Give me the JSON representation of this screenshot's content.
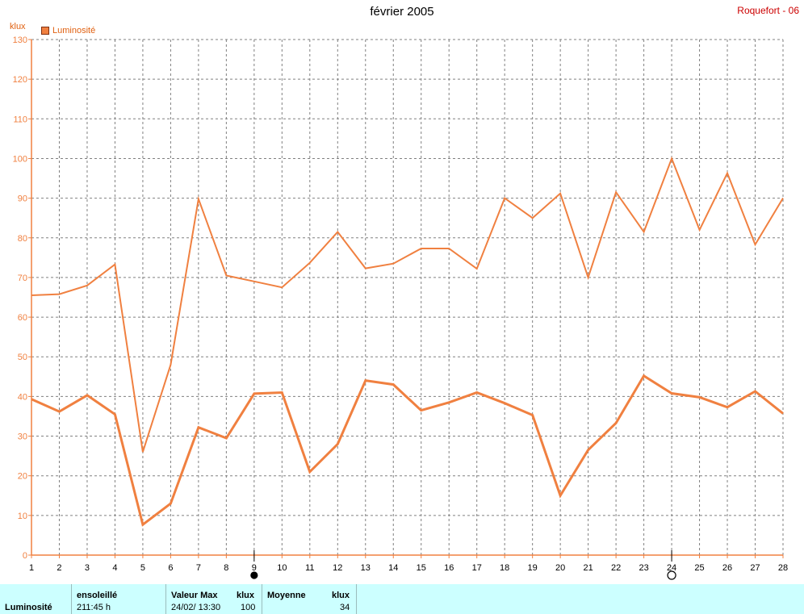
{
  "header": {
    "title": "février 2005",
    "station": "Roquefort - 06",
    "unit": "klux",
    "legend": "Luminosité"
  },
  "colors": {
    "line": "#f08040",
    "axis": "#f08040",
    "grid": "#808080",
    "title": "#000000",
    "station": "#cc0000"
  },
  "chart_data": {
    "type": "line",
    "title": "février 2005",
    "ylabel": "klux",
    "ylim": [
      0,
      130
    ],
    "yticks": [
      0,
      10,
      20,
      30,
      40,
      50,
      60,
      70,
      80,
      90,
      100,
      110,
      120,
      130
    ],
    "x": [
      1,
      2,
      3,
      4,
      5,
      6,
      7,
      8,
      9,
      10,
      11,
      12,
      13,
      14,
      15,
      16,
      17,
      18,
      19,
      20,
      21,
      22,
      23,
      24,
      25,
      26,
      27,
      28
    ],
    "grid": true,
    "legend_position": "top-left",
    "series": [
      {
        "name": "Luminosité",
        "role": "max",
        "values": [
          65.5,
          65.8,
          68,
          73.3,
          26,
          48,
          89.8,
          70.5,
          69,
          67.5,
          73.7,
          81.5,
          72.3,
          73.5,
          77.3,
          77.3,
          72.2,
          90,
          85,
          91.2,
          70,
          91.5,
          81.5,
          100,
          82,
          96.3,
          78.3,
          90
        ]
      },
      {
        "name": "Luminosité",
        "role": "mean",
        "values": [
          39.3,
          36.2,
          40.3,
          35.5,
          7.7,
          13,
          32.2,
          29.5,
          40.7,
          41,
          21,
          28,
          44,
          43,
          36.5,
          38.5,
          41,
          38.3,
          35.3,
          15,
          26.5,
          33.3,
          45.2,
          40.8,
          39.8,
          37.3,
          41.3,
          35.7
        ]
      }
    ],
    "markers": [
      {
        "day": 9,
        "symbol": "●",
        "meaning": "new moon"
      },
      {
        "day": 24,
        "symbol": "○",
        "meaning": "full moon"
      }
    ]
  },
  "stats": {
    "row_label": "Luminosité",
    "sunshine_header": "ensoleillé",
    "sunshine_value": "211:45 h",
    "max_header": "Valeur Max",
    "max_unit": "klux",
    "max_date": "24/02/  13:30",
    "max_value": "100",
    "mean_header": "Moyenne",
    "mean_unit": "klux",
    "mean_value": "34"
  }
}
